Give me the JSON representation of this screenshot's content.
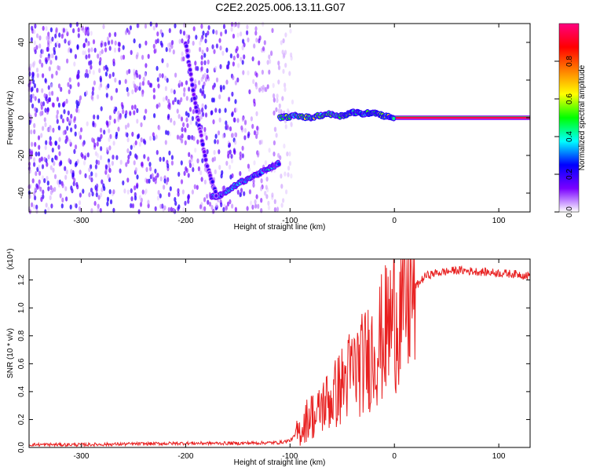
{
  "title": "C2E2.2025.006.13.11.G07",
  "chart_data": [
    {
      "type": "heatmap",
      "xlabel": "Height of straight line (km)",
      "ylabel": "Frequency (Hz)",
      "xlim": [
        -350,
        130
      ],
      "ylim": [
        -50,
        50
      ],
      "x_ticks": [
        -300,
        -200,
        -100,
        0,
        100
      ],
      "y_ticks": [
        -40,
        -20,
        0,
        20,
        40
      ],
      "colorbar": {
        "label": "Normalized spectral amplitude",
        "range": [
          0,
          1
        ],
        "ticks": [
          "0.0",
          "0.2",
          "0.4",
          "0.6",
          "0.8"
        ],
        "colormap": [
          "#ffffff",
          "#7a00ff",
          "#0000ff",
          "#00ffff",
          "#00ff00",
          "#ffff00",
          "#ff8000",
          "#ff0000",
          "#ff0080"
        ]
      },
      "features": [
        {
          "name": "carrier",
          "x": [
            0,
            130
          ],
          "y": [
            0,
            0
          ],
          "amplitude": 0.95
        },
        {
          "name": "diffraction track",
          "x": [
            -110,
            -95,
            -80,
            -65,
            -50,
            -40,
            -30,
            -20,
            -10,
            0
          ],
          "y": [
            0,
            1,
            0,
            2,
            1,
            3,
            2,
            3,
            1,
            0
          ],
          "amplitude": 0.6
        },
        {
          "name": "low band",
          "x": [
            -175,
            -165,
            -150,
            -135,
            -120,
            -110
          ],
          "y": [
            -42,
            -41,
            -35,
            -31,
            -27,
            -24
          ],
          "amplitude": 0.4
        },
        {
          "name": "steep streak",
          "x": [
            -200,
            -190,
            -180,
            -170
          ],
          "y": [
            40,
            5,
            -25,
            -42
          ],
          "amplitude": 0.2
        }
      ]
    },
    {
      "type": "line",
      "xlabel": "Height of straight line (km)",
      "ylabel": "SNR (10 * v/v)",
      "yscale_label": "(x10⁴)",
      "xlim": [
        -350,
        130
      ],
      "ylim": [
        0,
        1.35
      ],
      "x_ticks": [
        -300,
        -200,
        -100,
        0,
        100
      ],
      "y_ticks": [
        "0.0",
        "0.2",
        "0.4",
        "0.6",
        "0.8",
        "1.0",
        "1.2"
      ],
      "series": [
        {
          "color": "#e82020",
          "x": [
            -350,
            -300,
            -250,
            -200,
            -150,
            -110,
            -100,
            -90,
            -80,
            -75,
            -70,
            -60,
            -50,
            -40,
            -30,
            -20,
            -10,
            0,
            5,
            10,
            20,
            30,
            40,
            60,
            80,
            100,
            120,
            130
          ],
          "y": [
            0.02,
            0.02,
            0.025,
            0.03,
            0.03,
            0.035,
            0.05,
            0.12,
            0.25,
            0.2,
            0.3,
            0.35,
            0.45,
            0.55,
            0.6,
            0.7,
            0.8,
            0.95,
            1.0,
            1.05,
            1.15,
            1.23,
            1.25,
            1.27,
            1.26,
            1.25,
            1.24,
            1.23
          ]
        }
      ]
    }
  ]
}
